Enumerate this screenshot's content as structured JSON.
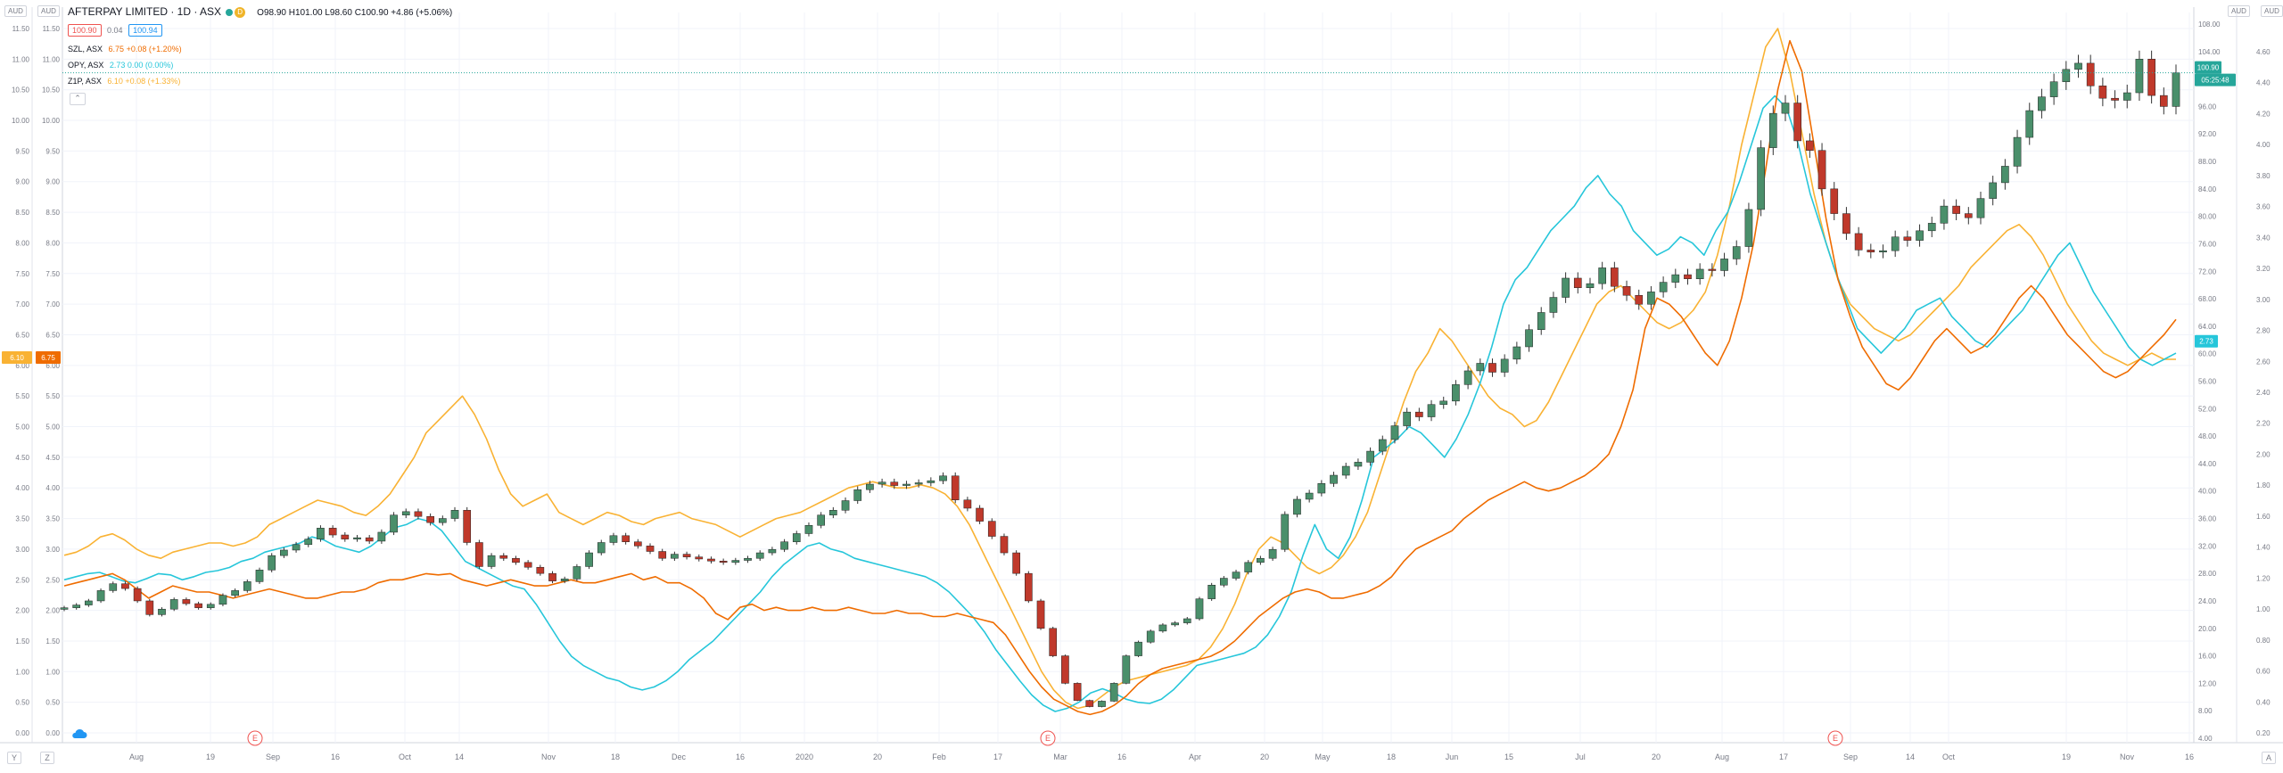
{
  "header": {
    "title": "AFTERPAY LIMITED · 1D · ASX",
    "ohlc": "O98.90 H101.00 L98.60 C100.90 +4.86 (+5.06%)",
    "bid": "100.90",
    "spread": "0.04",
    "ask": "100.94",
    "badge": "D"
  },
  "legend": [
    {
      "symbol": "SZL, ASX",
      "value": "6.75 +0.08 (+1.20%)",
      "color": "#ef6c00"
    },
    {
      "symbol": "OPY, ASX",
      "value": "2.73 0.00 (0.00%)",
      "color": "#26c6da"
    },
    {
      "symbol": "Z1P, ASX",
      "value": "6.10 +0.08 (+1.33%)",
      "color": "#f9b233"
    }
  ],
  "axis_units": {
    "left1": "AUD",
    "left2": "AUD",
    "right1": "AUD",
    "right2": "AUD"
  },
  "corner_buttons": {
    "left1": "Y",
    "left2": "Z",
    "right": "A"
  },
  "earnings_marker": "E",
  "chart_data": {
    "type": "candlestick+line",
    "main_series": "AFTERPAY LIMITED (APT)",
    "x_labels": [
      "Aug",
      "19",
      "Sep",
      "16",
      "Oct",
      "14",
      "Nov",
      "18",
      "Dec",
      "16",
      "2020",
      "20",
      "Feb",
      "17",
      "Mar",
      "16",
      "Apr",
      "20",
      "May",
      "18",
      "Jun",
      "15",
      "Jul",
      "20",
      "Aug",
      "17",
      "Sep",
      "14",
      "Oct",
      "19",
      "Nov",
      "16"
    ],
    "left_axis_a_ticks": [
      "0.00",
      "0.50",
      "1.00",
      "1.50",
      "2.00",
      "2.50",
      "3.00",
      "3.50",
      "4.00",
      "4.50",
      "5.00",
      "5.50",
      "6.00",
      "6.50",
      "7.00",
      "7.50",
      "8.00",
      "8.50",
      "9.00",
      "9.50",
      "10.00",
      "10.50",
      "11.00",
      "11.50"
    ],
    "left_axis_b_ticks": [
      "0.00",
      "0.50",
      "1.00",
      "1.50",
      "2.00",
      "2.50",
      "3.00",
      "3.50",
      "4.00",
      "4.50",
      "5.00",
      "5.50",
      "6.00",
      "6.50",
      "7.00",
      "7.50",
      "8.00",
      "8.50",
      "9.00",
      "9.50",
      "10.00",
      "10.50",
      "11.00",
      "11.50"
    ],
    "right_axis_a_ticks": [
      "4.00",
      "8.00",
      "12.00",
      "16.00",
      "20.00",
      "24.00",
      "28.00",
      "32.00",
      "36.00",
      "40.00",
      "44.00",
      "48.00",
      "52.00",
      "56.00",
      "60.00",
      "64.00",
      "68.00",
      "72.00",
      "76.00",
      "80.00",
      "84.00",
      "88.00",
      "92.00",
      "96.00",
      "100.00",
      "104.00",
      "108.00"
    ],
    "right_axis_b_ticks": [
      "0.20",
      "0.40",
      "0.60",
      "0.80",
      "1.00",
      "1.20",
      "1.40",
      "1.60",
      "1.80",
      "2.00",
      "2.20",
      "2.40",
      "2.60",
      "2.80",
      "3.00",
      "3.20",
      "3.40",
      "3.60",
      "3.80",
      "4.00",
      "4.20",
      "4.40",
      "4.60"
    ],
    "price_tags": {
      "z1p_left": "6.10",
      "szl_left": "6.75",
      "apt_last": "100.90",
      "apt_countdown": "05:25:48",
      "opy_right": "2.73"
    },
    "apt_close": [
      23,
      23.4,
      24,
      25.5,
      26.5,
      25.8,
      24,
      22,
      22.8,
      24.2,
      23.6,
      23,
      23.5,
      24.8,
      25.5,
      26.8,
      28.5,
      30.6,
      31.4,
      32.2,
      33,
      34.6,
      33.6,
      33,
      33.2,
      32.7,
      34,
      36.5,
      37,
      36.3,
      35.4,
      36,
      37.2,
      32.5,
      29,
      30.6,
      30.2,
      29.6,
      28.9,
      28,
      26.9,
      27.2,
      29,
      31,
      32.5,
      33.5,
      32.6,
      32,
      31.2,
      30.2,
      30.8,
      30.4,
      30.1,
      29.8,
      29.6,
      29.9,
      30.2,
      31,
      31.5,
      32.6,
      33.8,
      35,
      36.5,
      37.2,
      38.6,
      40.2,
      41,
      41.3,
      40.8,
      41,
      41.2,
      41.5,
      42.2,
      38.7,
      37.5,
      35.6,
      33.4,
      31,
      28,
      24,
      20,
      16,
      12,
      9.5,
      8.6,
      9.4,
      12,
      16,
      18,
      19.6,
      20.5,
      20.8,
      21.4,
      24.3,
      26.3,
      27.3,
      28.2,
      29.6,
      30.2,
      31.5,
      36.6,
      38.8,
      39.7,
      41.1,
      42.3,
      43.6,
      44.2,
      45.8,
      47.5,
      49.5,
      51.5,
      50.8,
      52.6,
      53.1,
      55.5,
      57.5,
      58.6,
      57.3,
      59.2,
      61,
      63.5,
      66,
      68.2,
      71,
      69.6,
      70.2,
      72.5,
      69.8,
      68.5,
      67.2,
      69,
      70.4,
      71.5,
      70.9,
      72.3,
      72.1,
      73.8,
      75.6,
      81,
      90,
      95,
      96.5,
      91,
      89.6,
      84,
      80.4,
      77.5,
      75.1,
      74.8,
      75,
      77,
      76.5,
      77.9,
      79,
      81.5,
      80.4,
      79.8,
      82.6,
      84.9,
      87.3,
      91.5,
      95.4,
      97.4,
      99.6,
      101.4,
      102.3,
      99,
      97.2,
      96.9,
      98,
      102.9,
      97.6,
      96,
      100.9
    ],
    "opy": [
      2.5,
      2.55,
      2.6,
      2.62,
      2.55,
      2.48,
      2.45,
      2.52,
      2.6,
      2.58,
      2.5,
      2.55,
      2.62,
      2.65,
      2.7,
      2.8,
      2.85,
      2.95,
      3.0,
      3.05,
      3.1,
      3.2,
      3.15,
      3.05,
      3.0,
      2.95,
      3.05,
      3.2,
      3.35,
      3.4,
      3.5,
      3.45,
      3.3,
      3.05,
      2.8,
      2.7,
      2.6,
      2.5,
      2.4,
      2.35,
      2.1,
      1.8,
      1.5,
      1.25,
      1.1,
      1.0,
      0.9,
      0.85,
      0.75,
      0.7,
      0.75,
      0.85,
      1.0,
      1.2,
      1.35,
      1.5,
      1.7,
      1.9,
      2.1,
      2.3,
      2.55,
      2.75,
      2.9,
      3.05,
      3.1,
      3.0,
      2.95,
      2.85,
      2.8,
      2.75,
      2.7,
      2.65,
      2.6,
      2.55,
      2.45,
      2.3,
      2.1,
      1.9,
      1.65,
      1.35,
      1.1,
      0.85,
      0.62,
      0.45,
      0.35,
      0.4,
      0.5,
      0.65,
      0.72,
      0.65,
      0.55,
      0.5,
      0.48,
      0.55,
      0.7,
      0.9,
      1.1,
      1.15,
      1.2,
      1.25,
      1.3,
      1.4,
      1.6,
      1.9,
      2.3,
      2.9,
      3.4,
      3.0,
      2.85,
      3.2,
      3.8,
      4.5,
      4.65,
      4.8,
      5.0,
      4.9,
      4.7,
      4.5,
      4.8,
      5.2,
      5.7,
      6.3,
      7.0,
      7.4,
      7.6,
      7.9,
      8.2,
      8.4,
      8.6,
      8.9,
      9.1,
      8.8,
      8.6,
      8.2,
      8.0,
      7.8,
      7.9,
      8.1,
      8.0,
      7.8,
      8.2,
      8.5,
      9.0,
      9.6,
      10.2,
      10.4,
      10.2,
      9.6,
      8.8,
      8.2,
      7.6,
      7.1,
      6.6,
      6.4,
      6.2,
      6.4,
      6.6,
      6.9,
      7.0,
      7.1,
      6.8,
      6.6,
      6.4,
      6.3,
      6.5,
      6.7,
      6.9,
      7.2,
      7.5,
      7.8,
      8.0,
      7.6,
      7.2,
      6.9,
      6.6,
      6.3,
      6.1,
      6.0,
      6.1,
      6.2
    ],
    "szl": [
      2.4,
      2.45,
      2.5,
      2.55,
      2.6,
      2.5,
      2.35,
      2.2,
      2.3,
      2.4,
      2.35,
      2.3,
      2.3,
      2.25,
      2.2,
      2.25,
      2.3,
      2.35,
      2.3,
      2.25,
      2.2,
      2.2,
      2.25,
      2.3,
      2.3,
      2.35,
      2.45,
      2.5,
      2.5,
      2.55,
      2.6,
      2.58,
      2.6,
      2.5,
      2.45,
      2.4,
      2.45,
      2.5,
      2.45,
      2.4,
      2.4,
      2.45,
      2.5,
      2.45,
      2.45,
      2.5,
      2.55,
      2.6,
      2.5,
      2.55,
      2.45,
      2.45,
      2.35,
      2.2,
      1.95,
      1.85,
      2.05,
      2.1,
      2.0,
      2.05,
      2.0,
      2.0,
      2.05,
      2.0,
      2.0,
      2.05,
      2.0,
      1.95,
      1.95,
      2.0,
      1.95,
      1.95,
      1.9,
      1.9,
      1.95,
      1.9,
      1.85,
      1.8,
      1.6,
      1.3,
      1.0,
      0.75,
      0.55,
      0.45,
      0.35,
      0.3,
      0.35,
      0.45,
      0.6,
      0.8,
      0.95,
      1.05,
      1.1,
      1.15,
      1.2,
      1.25,
      1.35,
      1.5,
      1.7,
      1.9,
      2.05,
      2.2,
      2.3,
      2.35,
      2.3,
      2.2,
      2.2,
      2.25,
      2.3,
      2.4,
      2.55,
      2.8,
      3.0,
      3.1,
      3.2,
      3.3,
      3.5,
      3.65,
      3.8,
      3.9,
      4.0,
      4.1,
      4.0,
      3.95,
      4.0,
      4.1,
      4.2,
      4.35,
      4.55,
      5.0,
      5.6,
      6.6,
      7.1,
      7.0,
      6.8,
      6.5,
      6.2,
      6.0,
      6.4,
      7.1,
      8.0,
      9.2,
      10.5,
      11.3,
      10.8,
      9.6,
      8.4,
      7.4,
      6.8,
      6.3,
      6.0,
      5.7,
      5.6,
      5.8,
      6.1,
      6.4,
      6.6,
      6.4,
      6.2,
      6.3,
      6.5,
      6.8,
      7.1,
      7.3,
      7.1,
      6.8,
      6.5,
      6.3,
      6.1,
      5.9,
      5.8,
      5.9,
      6.1,
      6.3,
      6.5,
      6.75
    ],
    "z1p": [
      2.9,
      2.95,
      3.05,
      3.2,
      3.25,
      3.15,
      3.0,
      2.9,
      2.85,
      2.95,
      3.0,
      3.05,
      3.1,
      3.1,
      3.05,
      3.1,
      3.2,
      3.4,
      3.5,
      3.6,
      3.7,
      3.8,
      3.75,
      3.7,
      3.6,
      3.55,
      3.7,
      3.9,
      4.2,
      4.5,
      4.9,
      5.1,
      5.3,
      5.5,
      5.2,
      4.8,
      4.3,
      3.9,
      3.7,
      3.8,
      3.9,
      3.6,
      3.5,
      3.4,
      3.5,
      3.6,
      3.55,
      3.45,
      3.4,
      3.5,
      3.55,
      3.6,
      3.5,
      3.45,
      3.4,
      3.3,
      3.2,
      3.3,
      3.4,
      3.5,
      3.55,
      3.6,
      3.7,
      3.8,
      3.9,
      4.0,
      4.05,
      4.1,
      4.05,
      4.0,
      4.0,
      4.05,
      4.0,
      3.9,
      3.7,
      3.4,
      3.0,
      2.6,
      2.2,
      1.8,
      1.4,
      1.0,
      0.7,
      0.5,
      0.4,
      0.45,
      0.6,
      0.75,
      0.85,
      0.9,
      0.95,
      1.0,
      1.05,
      1.1,
      1.2,
      1.4,
      1.7,
      2.1,
      2.6,
      3.0,
      3.2,
      3.1,
      2.9,
      2.7,
      2.6,
      2.7,
      2.9,
      3.2,
      3.6,
      4.2,
      4.8,
      5.4,
      5.9,
      6.2,
      6.6,
      6.4,
      6.1,
      5.8,
      5.5,
      5.3,
      5.2,
      5.0,
      5.1,
      5.4,
      5.8,
      6.2,
      6.6,
      7.0,
      7.2,
      7.3,
      7.1,
      6.9,
      6.7,
      6.6,
      6.7,
      6.9,
      7.2,
      7.8,
      8.6,
      9.6,
      10.4,
      11.2,
      11.5,
      10.8,
      9.8,
      8.8,
      8.0,
      7.4,
      7.0,
      6.8,
      6.6,
      6.5,
      6.4,
      6.5,
      6.7,
      6.9,
      7.1,
      7.3,
      7.6,
      7.8,
      8.0,
      8.2,
      8.3,
      8.1,
      7.8,
      7.4,
      7.0,
      6.7,
      6.4,
      6.2,
      6.1,
      6.0,
      6.1,
      6.2,
      6.1,
      6.1
    ]
  }
}
